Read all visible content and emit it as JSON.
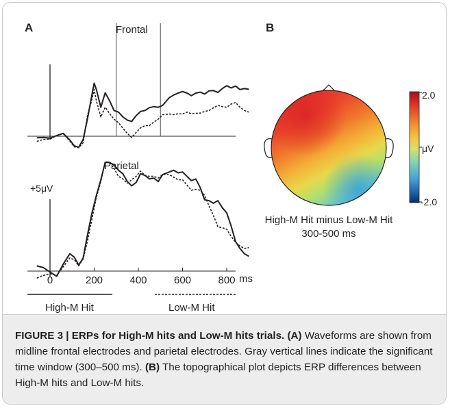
{
  "panel_a": {
    "letter": "A",
    "frontal_label": "Frontal",
    "parietal_label": "Parietal",
    "scale_label": "+5μV",
    "x_ticks": [
      "0",
      "200",
      "400",
      "600",
      "800"
    ],
    "x_unit": "ms",
    "legend_solid": "High-M Hit",
    "legend_dashed": "Low-M Hit"
  },
  "panel_b": {
    "letter": "B",
    "colorbar_max": "2.0",
    "colorbar_unit": "μV",
    "colorbar_min": "-2.0",
    "title_line1": "High-M Hit minus Low-M Hit",
    "title_line2": "300-500 ms"
  },
  "caption": {
    "figure_label": "FIGURE 3 | ERPs for High-M hits and Low-M hits trials.",
    "part_a_label": "(A)",
    "part_a_text": "Waveforms are shown from midline frontal electrodes and parietal electrodes. Gray vertical lines indicate the significant time window (300–500 ms).",
    "part_b_label": "(B)",
    "part_b_text": "The topographical plot depicts ERP differences between High-M hits and Low-M hits."
  },
  "colors": {
    "frame_border": "#c9c9c9",
    "caption_bg": "#ededed",
    "text": "#231f20",
    "colormap": [
      "#08306b",
      "#2166ac",
      "#4ba3d8",
      "#7fd3b4",
      "#d2e36b",
      "#f5c542",
      "#f08a2a",
      "#e0342a",
      "#a50f15"
    ]
  },
  "chart_data": {
    "type": "line",
    "x_unit": "ms",
    "xlim": [
      -60,
      900
    ],
    "x_ticks": [
      0,
      200,
      400,
      600,
      800
    ],
    "significant_window_ms": [
      300,
      500
    ],
    "legend": [
      "High-M Hit",
      "Low-M Hit"
    ],
    "panels": [
      {
        "name": "Frontal",
        "series": [
          {
            "name": "High-M Hit",
            "style": "solid",
            "x": [
              -60,
              -30,
              0,
              30,
              60,
              90,
              110,
              130,
              150,
              170,
              190,
              200,
              210,
              230,
              250,
              270,
              290,
              310,
              330,
              350,
              370,
              390,
              410,
              430,
              450,
              470,
              490,
              510,
              540,
              560,
              580,
              600,
              620,
              640,
              660,
              680,
              700,
              720,
              740,
              760,
              780,
              800,
              820,
              840,
              860,
              880,
              900
            ],
            "y": [
              -0.5,
              -0.4,
              -0.6,
              0.2,
              0.9,
              -1.2,
              -3.0,
              -3.4,
              -1.0,
              5.5,
              13.0,
              16.5,
              14.5,
              9.0,
              13.5,
              11.0,
              8.0,
              7.5,
              6.0,
              5.0,
              4.6,
              6.4,
              7.7,
              8.0,
              8.9,
              9.2,
              9.0,
              9.6,
              12.0,
              12.8,
              13.4,
              13.9,
              13.4,
              12.6,
              13.4,
              13.7,
              13.1,
              14.1,
              14.2,
              13.6,
              14.8,
              15.7,
              15.0,
              15.6,
              14.5,
              14.8,
              14.6
            ]
          },
          {
            "name": "Low-M Hit",
            "style": "dashed",
            "x": [
              -60,
              -30,
              0,
              30,
              60,
              90,
              110,
              130,
              150,
              170,
              190,
              200,
              210,
              230,
              250,
              270,
              290,
              310,
              330,
              350,
              370,
              390,
              410,
              430,
              450,
              470,
              490,
              510,
              540,
              560,
              580,
              600,
              620,
              640,
              660,
              680,
              700,
              720,
              740,
              760,
              780,
              800,
              820,
              840,
              860,
              880,
              900
            ],
            "y": [
              -1.6,
              -1.0,
              -0.9,
              0.2,
              0.8,
              -1.5,
              -3.3,
              -3.6,
              -2.0,
              6.5,
              11.5,
              14.5,
              11.0,
              6.0,
              9.0,
              7.0,
              5.3,
              4.2,
              2.5,
              0.9,
              -0.4,
              1.2,
              2.6,
              3.3,
              3.3,
              4.4,
              5.3,
              6.7,
              6.9,
              6.7,
              7.0,
              6.9,
              7.5,
              7.0,
              7.1,
              7.2,
              7.7,
              8.0,
              8.8,
              9.6,
              9.2,
              9.0,
              10.0,
              10.5,
              9.0,
              8.0,
              7.5
            ]
          }
        ]
      },
      {
        "name": "Parietal",
        "series": [
          {
            "name": "High-M Hit",
            "style": "solid",
            "x": [
              -60,
              -30,
              0,
              30,
              60,
              90,
              110,
              130,
              150,
              170,
              190,
              210,
              230,
              250,
              270,
              290,
              310,
              330,
              350,
              370,
              390,
              410,
              430,
              450,
              470,
              490,
              510,
              540,
              560,
              580,
              600,
              620,
              640,
              660,
              680,
              700,
              720,
              740,
              760,
              780,
              800,
              820,
              840,
              860,
              880,
              900
            ],
            "y": [
              0.6,
              0.4,
              -0.1,
              -0.6,
              0.8,
              2.0,
              1.6,
              0.7,
              1.5,
              4.2,
              6.7,
              8.7,
              10.5,
              12.5,
              12.5,
              12.2,
              11.6,
              11.2,
              10.3,
              9.8,
              10.2,
              11.2,
              11.0,
              10.6,
              10.7,
              10.3,
              11.1,
              11.4,
              11.6,
              11.3,
              11.4,
              10.9,
              10.4,
              10.6,
              9.6,
              8.2,
              8.1,
              7.8,
              8.1,
              7.3,
              6.7,
              5.2,
              3.4,
              2.6,
              2.0,
              1.7
            ]
          },
          {
            "name": "Low-M Hit",
            "style": "dashed",
            "x": [
              -60,
              -30,
              0,
              30,
              60,
              90,
              110,
              130,
              150,
              170,
              190,
              210,
              230,
              250,
              270,
              290,
              310,
              330,
              350,
              370,
              390,
              410,
              430,
              450,
              470,
              490,
              510,
              540,
              560,
              580,
              600,
              620,
              640,
              660,
              680,
              700,
              720,
              740,
              760,
              780,
              800,
              820,
              840,
              860,
              880,
              900
            ],
            "y": [
              -0.8,
              -0.5,
              -0.3,
              -0.5,
              0.5,
              1.5,
              1.3,
              0.6,
              1.4,
              3.5,
              6.0,
              8.5,
              10.3,
              12.6,
              12.5,
              11.8,
              10.9,
              10.6,
              10.1,
              10.5,
              10.9,
              11.5,
              11.0,
              10.9,
              10.9,
              10.7,
              11.1,
              11.1,
              10.8,
              10.5,
              10.5,
              9.9,
              9.3,
              9.4,
              9.3,
              8.7,
              7.5,
              6.4,
              5.1,
              5.0,
              4.8,
              4.0,
              3.3,
              2.9,
              2.6,
              2.7
            ]
          }
        ]
      }
    ]
  }
}
